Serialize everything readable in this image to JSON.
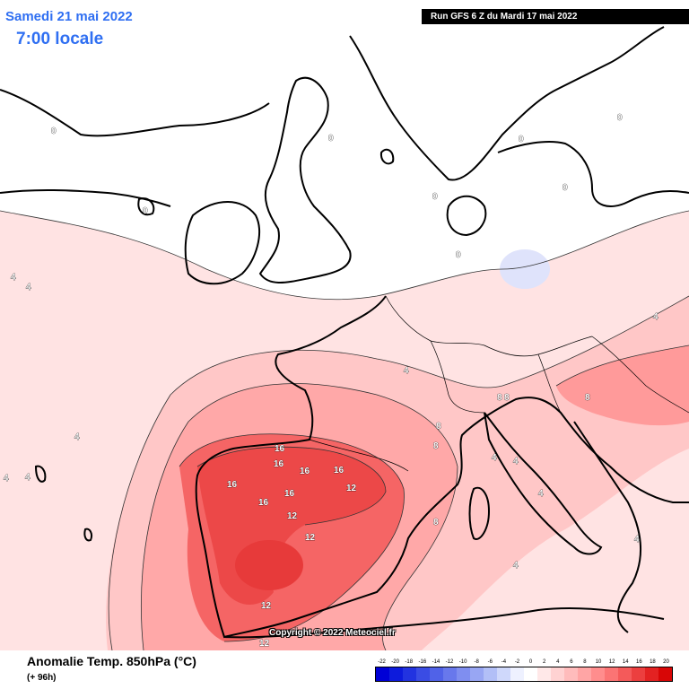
{
  "header": {
    "date_text": "Samedi 21 mai 2022",
    "time_text": "7:00 locale",
    "run_text": "Run GFS 6 Z du Mardi 17 mai 2022"
  },
  "footer": {
    "variable_text": "Anomalie Temp. 850hPa (°C)",
    "lead_text": "(+ 96h)",
    "copyright_text": "Copyright © 2022 Meteociel.fr"
  },
  "scale": {
    "ticks": [
      "-22",
      "-20",
      "-18",
      "-16",
      "-14",
      "-12",
      "-10",
      "-8",
      "-6",
      "-4",
      "-2",
      "0",
      "2",
      "4",
      "6",
      "8",
      "10",
      "12",
      "14",
      "16",
      "18",
      "20"
    ],
    "colors": [
      "#0000d6",
      "#0d1bdc",
      "#2233e0",
      "#3a4ce4",
      "#5062e8",
      "#6878ec",
      "#7f8ef0",
      "#98a6f3",
      "#b2bff7",
      "#cfd8fb",
      "#eef1ff",
      "#ffffff",
      "#ffe8e8",
      "#ffd2d2",
      "#ffbcbc",
      "#ffa5a5",
      "#ff8d8d",
      "#fb7474",
      "#f45a5a",
      "#ec3f3f",
      "#e32222",
      "#d80606"
    ]
  },
  "contour_labels": [
    {
      "text": "16",
      "color": "white"
    },
    {
      "text": "16",
      "color": "white"
    },
    {
      "text": "16",
      "color": "white"
    },
    {
      "text": "16",
      "color": "white"
    },
    {
      "text": "16",
      "color": "white"
    },
    {
      "text": "16",
      "color": "white"
    },
    {
      "text": "16",
      "color": "white"
    },
    {
      "text": "12",
      "color": "white"
    },
    {
      "text": "12",
      "color": "white"
    },
    {
      "text": "12",
      "color": "white"
    },
    {
      "text": "12",
      "color": "white"
    },
    {
      "text": "12",
      "color": "white"
    },
    {
      "text": "8",
      "color": "white"
    },
    {
      "text": "8",
      "color": "white"
    },
    {
      "text": "8",
      "color": "white"
    },
    {
      "text": "8",
      "color": "white"
    },
    {
      "text": "8",
      "color": "white"
    },
    {
      "text": "8",
      "color": "white"
    },
    {
      "text": "4",
      "color": "white"
    },
    {
      "text": "4",
      "color": "white"
    },
    {
      "text": "4",
      "color": "white"
    },
    {
      "text": "4",
      "color": "white"
    },
    {
      "text": "4",
      "color": "white"
    },
    {
      "text": "4",
      "color": "white"
    },
    {
      "text": "4",
      "color": "white"
    },
    {
      "text": "4",
      "color": "white"
    },
    {
      "text": "4",
      "color": "white"
    },
    {
      "text": "4",
      "color": "white"
    },
    {
      "text": "4",
      "color": "white"
    },
    {
      "text": "4",
      "color": "white"
    },
    {
      "text": "0",
      "color": "white"
    },
    {
      "text": "0",
      "color": "white"
    },
    {
      "text": "0",
      "color": "white"
    },
    {
      "text": "0",
      "color": "white"
    },
    {
      "text": "0",
      "color": "white"
    },
    {
      "text": "0",
      "color": "white"
    },
    {
      "text": "0",
      "color": "white"
    },
    {
      "text": "0",
      "color": "white"
    }
  ]
}
